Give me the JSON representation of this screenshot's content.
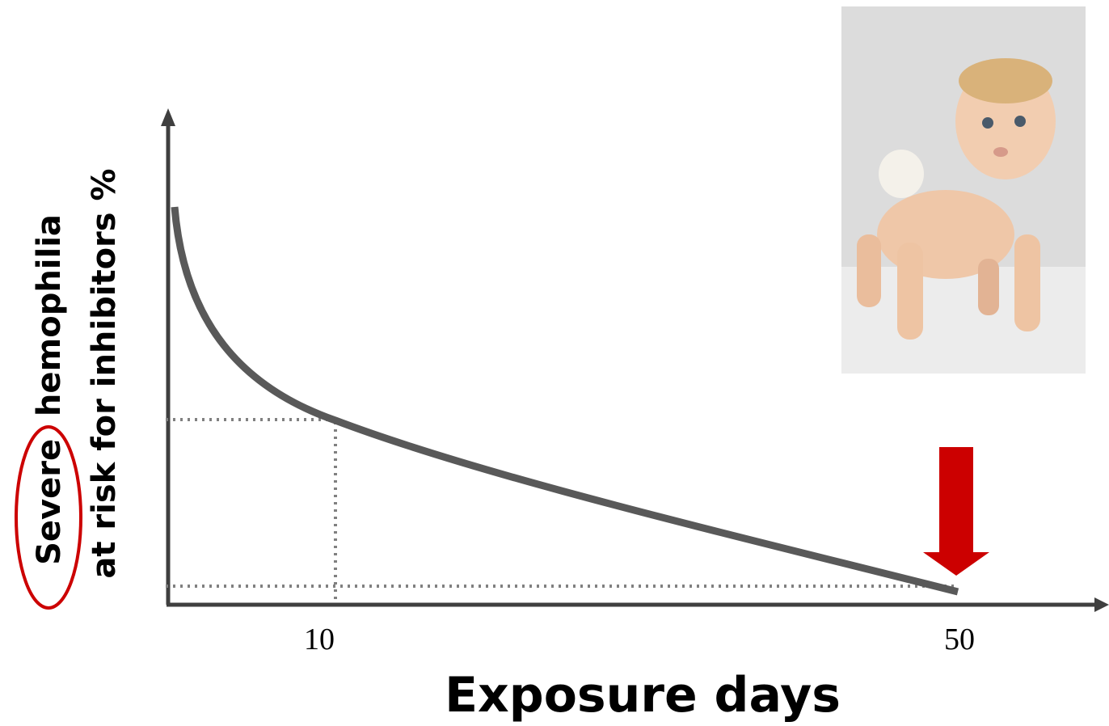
{
  "y_label": {
    "line1": "Severe  hemophilia",
    "line2": "at risk for inhibitors %"
  },
  "x_label": "Exposure days",
  "x_ticks": [
    "10",
    "50"
  ]
}
